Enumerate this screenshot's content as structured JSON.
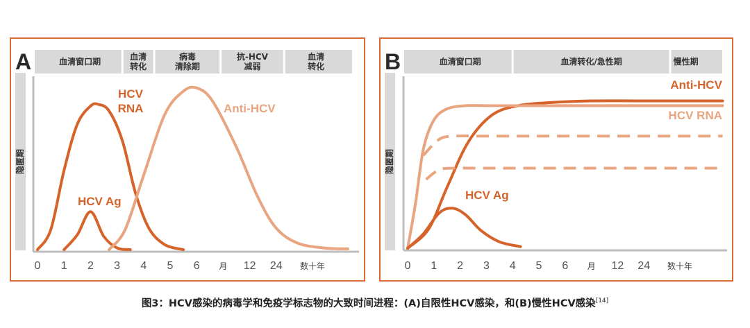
{
  "colors": {
    "dark": "#D5632A",
    "light": "#E8A57F",
    "border": "#D86A35",
    "header_bg": "#D9D9D9",
    "axis": "#BDBDBD"
  },
  "chart_data": [
    {
      "panel": "A",
      "type": "line",
      "latency_label": "隐匿期",
      "phases": [
        {
          "label": [
            "血清窗口期"
          ],
          "x_start": 0,
          "x_end": 3.2
        },
        {
          "label": [
            "血清",
            "转化"
          ],
          "x_start": 3.2,
          "x_end": 4.4
        },
        {
          "label": [
            "病毒",
            "清除期"
          ],
          "x_start": 4.4,
          "x_end": 6.9
        },
        {
          "label": [
            "抗-HCV",
            "减弱"
          ],
          "x_start": 6.9,
          "x_end": 9.3
        },
        {
          "label": [
            "血清",
            "转化"
          ],
          "x_start": 9.3,
          "x_end": 11.7
        }
      ],
      "x_ticks": [
        "0",
        "1",
        "2",
        "3",
        "4",
        "5",
        "6",
        "月",
        "12",
        "24",
        "数十年"
      ],
      "y_range": [
        0,
        100
      ],
      "series": [
        {
          "name": "HCV RNA",
          "label_lines": [
            "HCV",
            "RNA"
          ],
          "style": "dark",
          "dashed": false,
          "points": [
            [
              0,
              0
            ],
            [
              0.5,
              12
            ],
            [
              1,
              48
            ],
            [
              1.5,
              76
            ],
            [
              2,
              87
            ],
            [
              2.3,
              88
            ],
            [
              2.7,
              84
            ],
            [
              3.2,
              66
            ],
            [
              3.7,
              34
            ],
            [
              4.2,
              13
            ],
            [
              4.8,
              3
            ],
            [
              5.5,
              0
            ]
          ]
        },
        {
          "name": "HCV Ag",
          "label_lines": [
            "HCV Ag"
          ],
          "style": "dark",
          "dashed": false,
          "points": [
            [
              1,
              0
            ],
            [
              1.5,
              9
            ],
            [
              2,
              23
            ],
            [
              2.5,
              8
            ],
            [
              3,
              1
            ],
            [
              3.5,
              0
            ]
          ]
        },
        {
          "name": "Anti-HCV",
          "label_lines": [
            "Anti-HCV"
          ],
          "style": "light",
          "dashed": false,
          "points": [
            [
              2.7,
              0
            ],
            [
              3.3,
              12
            ],
            [
              4,
              45
            ],
            [
              4.8,
              82
            ],
            [
              5.5,
              96
            ],
            [
              6,
              98
            ],
            [
              6.6,
              90
            ],
            [
              7.5,
              62
            ],
            [
              8.3,
              32
            ],
            [
              9,
              13
            ],
            [
              9.8,
              4
            ],
            [
              10.8,
              1
            ],
            [
              11.7,
              0.5
            ]
          ]
        }
      ]
    },
    {
      "panel": "B",
      "type": "line",
      "latency_label": "隐匿期",
      "phases": [
        {
          "label": [
            "血清窗口期"
          ],
          "x_start": 0,
          "x_end": 4
        },
        {
          "label": [
            "血清转化/急性期"
          ],
          "x_start": 4,
          "x_end": 10
        },
        {
          "label": [
            "慢性期"
          ],
          "x_start": 10,
          "x_end": 11.2
        }
      ],
      "x_ticks": [
        "0",
        "1",
        "2",
        "3",
        "4",
        "5",
        "6",
        "月",
        "12",
        "24",
        "数十年"
      ],
      "y_range": [
        0,
        100
      ],
      "series": [
        {
          "name": "Anti-HCV",
          "label_lines": [
            "Anti-HCV"
          ],
          "style": "dark",
          "dashed": false,
          "points": [
            [
              0,
              0
            ],
            [
              0.8,
              12
            ],
            [
              1.5,
              38
            ],
            [
              2.3,
              66
            ],
            [
              3.2,
              83
            ],
            [
              4.2,
              89
            ],
            [
              5.5,
              91
            ],
            [
              7,
              92
            ],
            [
              9,
              92
            ],
            [
              12,
              92
            ]
          ]
        },
        {
          "name": "HCV RNA",
          "label_lines": [
            "HCV RNA"
          ],
          "style": "light",
          "dashed": false,
          "points": [
            [
              0,
              0
            ],
            [
              0.3,
              28
            ],
            [
              0.6,
              62
            ],
            [
              1,
              80
            ],
            [
              1.5,
              87
            ],
            [
              2.2,
              89
            ],
            [
              3,
              89
            ],
            [
              5,
              89
            ],
            [
              8,
              89
            ],
            [
              12,
              89
            ]
          ]
        },
        {
          "name": "HCV RNA (resolved, upper)",
          "label_lines": [],
          "style": "light",
          "dashed": true,
          "points": [
            [
              0.6,
              58
            ],
            [
              1.2,
              68
            ],
            [
              1.8,
              70
            ],
            [
              3,
              70
            ],
            [
              6,
              70
            ],
            [
              12,
              70
            ]
          ]
        },
        {
          "name": "HCV RNA (resolved, lower)",
          "label_lines": [],
          "style": "light",
          "dashed": true,
          "points": [
            [
              0.7,
              43
            ],
            [
              1.2,
              49
            ],
            [
              1.8,
              50
            ],
            [
              3,
              50
            ],
            [
              6,
              50
            ],
            [
              12,
              50
            ]
          ]
        },
        {
          "name": "HCV Ag",
          "label_lines": [
            "HCV Ag"
          ],
          "style": "dark",
          "dashed": false,
          "points": [
            [
              0,
              0
            ],
            [
              0.6,
              9
            ],
            [
              1.2,
              22
            ],
            [
              1.7,
              25
            ],
            [
              2.2,
              21
            ],
            [
              2.8,
              11
            ],
            [
              3.5,
              4
            ],
            [
              4.3,
              1
            ]
          ]
        }
      ]
    }
  ],
  "caption": {
    "text": "图3：HCV感染的病毒学和免疫学标志物的大致时间进程：(A)自限性HCV感染，和(B)慢性HCV感染",
    "ref": "[14]"
  }
}
